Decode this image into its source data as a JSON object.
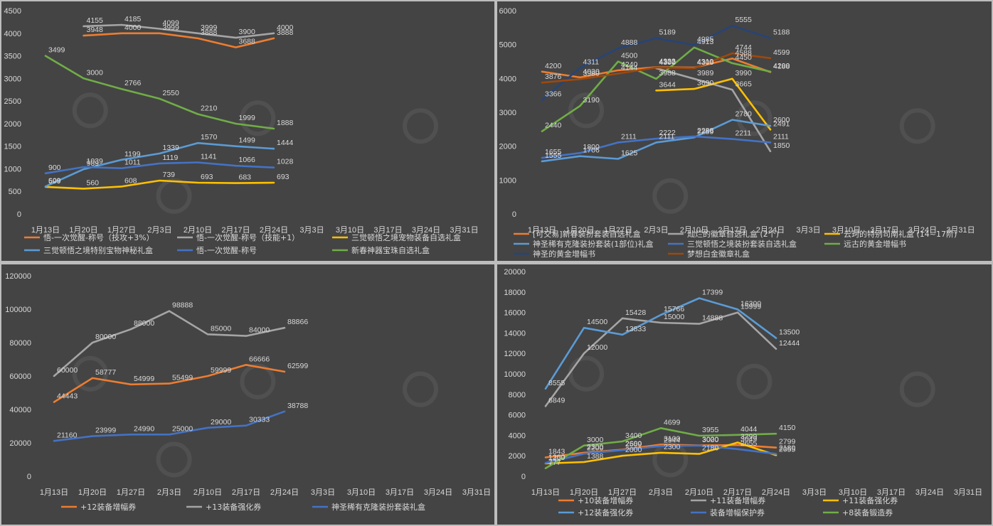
{
  "x_labels": [
    "1月13日",
    "1月20日",
    "1月27日",
    "2月3日",
    "2月10日",
    "2月17日",
    "2月24日",
    "3月3日",
    "3月10日",
    "3月17日",
    "3月24日",
    "3月31日"
  ],
  "chart_data": [
    {
      "type": "line",
      "ylim": [
        0,
        4500
      ],
      "yticks": [
        0,
        500,
        1000,
        1500,
        2000,
        2500,
        3000,
        3500,
        4000,
        4500
      ],
      "legend_position": "bottom",
      "series": [
        {
          "name": "悟-一次觉醒-称号（技攻+3%）",
          "color": "#ed7d31",
          "values": [
            null,
            3948,
            4000,
            3999,
            3888,
            3688,
            3888
          ]
        },
        {
          "name": "悟-一次觉醒-称号（技能+1）",
          "color": "#a5a5a5",
          "values": [
            null,
            4155,
            4185,
            4099,
            3999,
            3900,
            4000
          ]
        },
        {
          "name": "三觉顿悟之境宠物装备自选礼盒",
          "color": "#ffc000",
          "values": [
            599,
            560,
            608,
            739,
            693,
            683,
            693
          ]
        },
        {
          "name": "三觉顿悟之境特别宝物神秘礼盒",
          "color": "#5b9bd5",
          "values": [
            609,
            989,
            1199,
            1339,
            1570,
            1499,
            1444
          ]
        },
        {
          "name": "悟-一次觉醒-称号",
          "color": "#4472c4",
          "values": [
            900,
            1039,
            1011,
            1119,
            1141,
            1066,
            1028
          ]
        },
        {
          "name": "新春神器宝珠自选礼盒",
          "color": "#70ad47",
          "values": [
            3499,
            3000,
            2766,
            2550,
            2210,
            1999,
            1888
          ]
        }
      ]
    },
    {
      "type": "line",
      "ylim": [
        0,
        6000
      ],
      "yticks": [
        0,
        1000,
        2000,
        3000,
        4000,
        5000,
        6000
      ],
      "legend_position": "bottom",
      "series": [
        {
          "name": "[可交易]新春装扮套装自选礼盒",
          "color": "#ed7d31",
          "values": [
            4200,
            4030,
            4240,
            4333,
            4319,
            4588,
            4188
          ]
        },
        {
          "name": "灿烂的徽章自选礼盒 (2个)",
          "color": "#a5a5a5",
          "values": [
            null,
            null,
            null,
            4300,
            3989,
            3665,
            1850
          ]
        },
        {
          "name": "云珂的特别司南礼盒 (14~17阶)",
          "color": "#ffc000",
          "values": [
            null,
            null,
            null,
            3644,
            3690,
            3990,
            2491
          ]
        },
        {
          "name": "神圣稀有克隆装扮套装(1部位)礼盒",
          "color": "#5b9bd5",
          "values": [
            1555,
            1706,
            1625,
            2111,
            2259,
            2780,
            2600
          ]
        },
        {
          "name": "三觉顿悟之境装扮套装自选礼盒",
          "color": "#4472c4",
          "values": [
            1655,
            1800,
            2111,
            2222,
            2288,
            2211,
            2111
          ]
        },
        {
          "name": "远古的黄金增幅书",
          "color": "#70ad47",
          "values": [
            2440,
            3190,
            4500,
            3988,
            4913,
            4450,
            4200
          ]
        },
        {
          "name": "神圣的黄金增幅书",
          "color": "#264478",
          "values": [
            3366,
            4311,
            4888,
            5189,
            4985,
            5555,
            5188
          ]
        },
        {
          "name": "梦想白金徽章礼盒",
          "color": "#9e480e",
          "values": [
            3876,
            3980,
            4144,
            4322,
            4300,
            4744,
            4599
          ]
        }
      ]
    },
    {
      "type": "line",
      "ylim": [
        0,
        120000
      ],
      "yticks": [
        0,
        20000,
        40000,
        60000,
        80000,
        100000,
        120000
      ],
      "legend_position": "bottom",
      "series": [
        {
          "name": "+12装备增幅券",
          "color": "#ed7d31",
          "values": [
            44443,
            58777,
            54999,
            55499,
            59999,
            66666,
            62599
          ]
        },
        {
          "name": "+13装备强化券",
          "color": "#a5a5a5",
          "values": [
            60000,
            80000,
            88000,
            98888,
            85000,
            84000,
            88866
          ]
        },
        {
          "name": "神圣稀有克隆装扮套装礼盒",
          "color": "#4472c4",
          "values": [
            21160,
            23999,
            24990,
            25000,
            29000,
            30333,
            38788
          ]
        }
      ]
    },
    {
      "type": "line",
      "ylim": [
        0,
        20000
      ],
      "yticks": [
        0,
        2000,
        4000,
        6000,
        8000,
        10000,
        12000,
        14000,
        16000,
        18000,
        20000
      ],
      "legend_position": "bottom",
      "series": [
        {
          "name": "+10装备增幅券",
          "color": "#ed7d31",
          "values": [
            1843,
            2300,
            2600,
            3100,
            3020,
            3049,
            2799
          ]
        },
        {
          "name": "+11装备增幅券",
          "color": "#a5a5a5",
          "values": [
            6849,
            12000,
            15428,
            15000,
            14888,
            15999,
            12444
          ]
        },
        {
          "name": "+11装备强化券",
          "color": "#ffc000",
          "values": [
            1250,
            1388,
            2000,
            2300,
            2180,
            3299,
            2055
          ]
        },
        {
          "name": "+12装备强化券",
          "color": "#5b9bd5",
          "values": [
            8555,
            14500,
            13833,
            15766,
            17399,
            16300,
            13500
          ]
        },
        {
          "name": "装备增幅保护券",
          "color": "#4472c4",
          "values": [
            1300,
            2200,
            2559,
            2944,
            3000,
            2655,
            2180
          ]
        },
        {
          "name": "+8装备锻造券",
          "color": "#70ad47",
          "values": [
            777,
            3000,
            3400,
            4699,
            3955,
            4044,
            4150
          ]
        }
      ]
    }
  ]
}
